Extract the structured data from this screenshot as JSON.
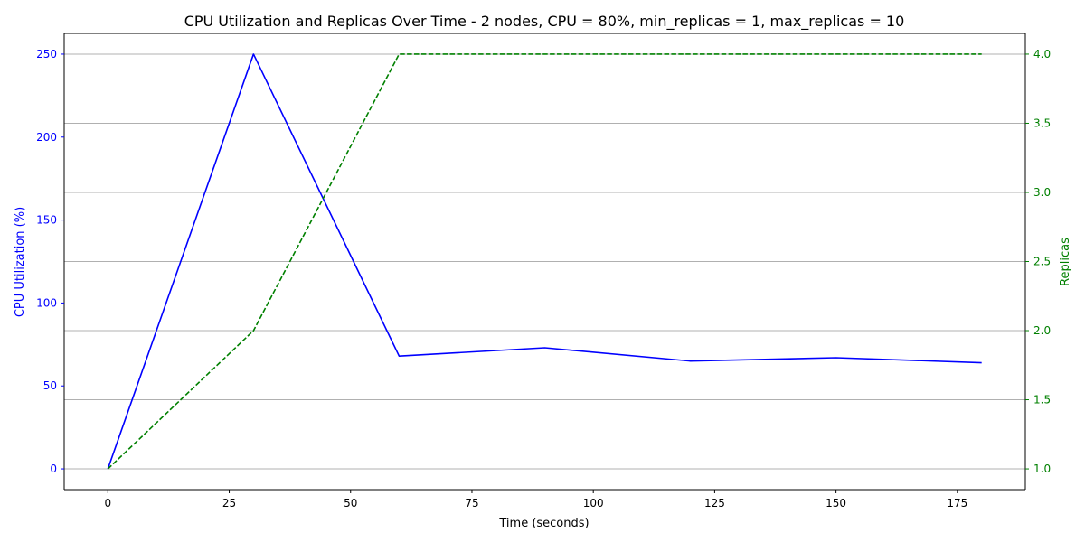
{
  "chart_data": {
    "type": "line",
    "title": "CPU Utilization and Replicas Over Time - 2 nodes, CPU = 80%, min_replicas = 1, max_replicas = 10",
    "xlabel": "Time (seconds)",
    "ylabel_left": "CPU Utilization (%)",
    "ylabel_right": "Replicas",
    "x": [
      0,
      30,
      60,
      90,
      120,
      150,
      180
    ],
    "xlim": [
      -9,
      189
    ],
    "x_ticks": [
      0,
      25,
      50,
      75,
      100,
      125,
      150,
      175
    ],
    "ylim_left": [
      -12.5,
      262.5
    ],
    "y_ticks_left": [
      0,
      50,
      100,
      150,
      200,
      250
    ],
    "ylim_right": [
      0.85,
      4.15
    ],
    "y_ticks_right": [
      1.0,
      1.5,
      2.0,
      2.5,
      3.0,
      3.5,
      4.0
    ],
    "y_tick_labels_right": [
      "1.0",
      "1.5",
      "2.0",
      "2.5",
      "3.0",
      "3.5",
      "4.0"
    ],
    "grid": "horizontal (right axis)",
    "series": [
      {
        "axis": "left",
        "color": "#0000ff",
        "style": "solid",
        "values": [
          0,
          250,
          68,
          73,
          65,
          67,
          64
        ]
      },
      {
        "axis": "right",
        "color": "#008000",
        "style": "dashed",
        "values": [
          1,
          2,
          4,
          4,
          4,
          4,
          4
        ]
      }
    ],
    "colors": {
      "left_axis": "#0000ff",
      "right_axis": "#008000",
      "grid": "#b0b0b0",
      "text": "#000000"
    }
  }
}
